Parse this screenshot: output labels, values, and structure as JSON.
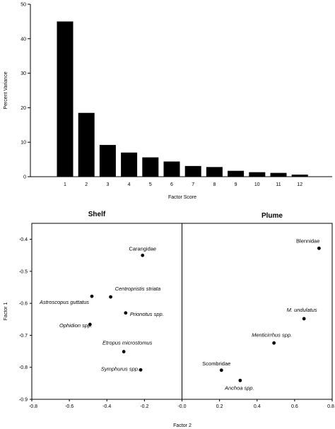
{
  "chart_data": [
    {
      "type": "bar",
      "title": "",
      "xlabel": "Factor Score",
      "ylabel": "Percent Variance",
      "ylim": [
        0,
        50
      ],
      "yticks": [
        0,
        10,
        20,
        30,
        40,
        50
      ],
      "categories": [
        "1",
        "2",
        "3",
        "4",
        "5",
        "6",
        "7",
        "8",
        "9",
        "10",
        "11",
        "12"
      ],
      "values": [
        45.0,
        18.5,
        9.2,
        7.0,
        5.6,
        4.4,
        3.1,
        2.8,
        1.7,
        1.3,
        1.1,
        0.6
      ],
      "bar_color": "#000000",
      "grid": false
    },
    {
      "type": "scatter",
      "title": "",
      "xlabel": "Factor 2",
      "ylabel": "Factor 1",
      "xlim": [
        -0.8,
        0.8
      ],
      "ylim": [
        -0.9,
        -0.35
      ],
      "xticks": [
        "-0.8",
        "-0.6",
        "-0.4",
        "-0.2",
        "-0.0",
        "0.2",
        "0.4",
        "0.6",
        "0.8"
      ],
      "yticks": [
        "-0.4",
        "-0.5",
        "-0.6",
        "-0.7",
        "-0.8",
        "-0.9"
      ],
      "region_labels": {
        "left": "Shelf",
        "right": "Plume"
      },
      "divider_x": 0.0,
      "grid": false,
      "points": [
        {
          "label": "Carangidae",
          "x": -0.21,
          "y": -0.45,
          "italic": false
        },
        {
          "label": "Centropristis striata",
          "x": -0.38,
          "y": -0.58,
          "italic": true
        },
        {
          "label": "Astroscopus guttatus",
          "x": -0.48,
          "y": -0.578,
          "italic": true
        },
        {
          "label": "Prionotus spp.",
          "x": -0.3,
          "y": -0.63,
          "italic": true
        },
        {
          "label": "Ophidion spp.",
          "x": -0.49,
          "y": -0.666,
          "italic": true
        },
        {
          "label": "Etropus microstomus",
          "x": -0.31,
          "y": -0.751,
          "italic": true
        },
        {
          "label": "Symphurus spp.",
          "x": -0.22,
          "y": -0.808,
          "italic": true
        },
        {
          "label": "Blennidae",
          "x": 0.73,
          "y": -0.428,
          "italic": false
        },
        {
          "label": "M. undulatus",
          "x": 0.65,
          "y": -0.648,
          "italic": true
        },
        {
          "label": "Menticirrhus spp.",
          "x": 0.49,
          "y": -0.724,
          "italic": true
        },
        {
          "label": "Scombridae",
          "x": 0.21,
          "y": -0.809,
          "italic": false
        },
        {
          "label": "Anchoa spp.",
          "x": 0.31,
          "y": -0.841,
          "italic": true
        }
      ]
    }
  ]
}
